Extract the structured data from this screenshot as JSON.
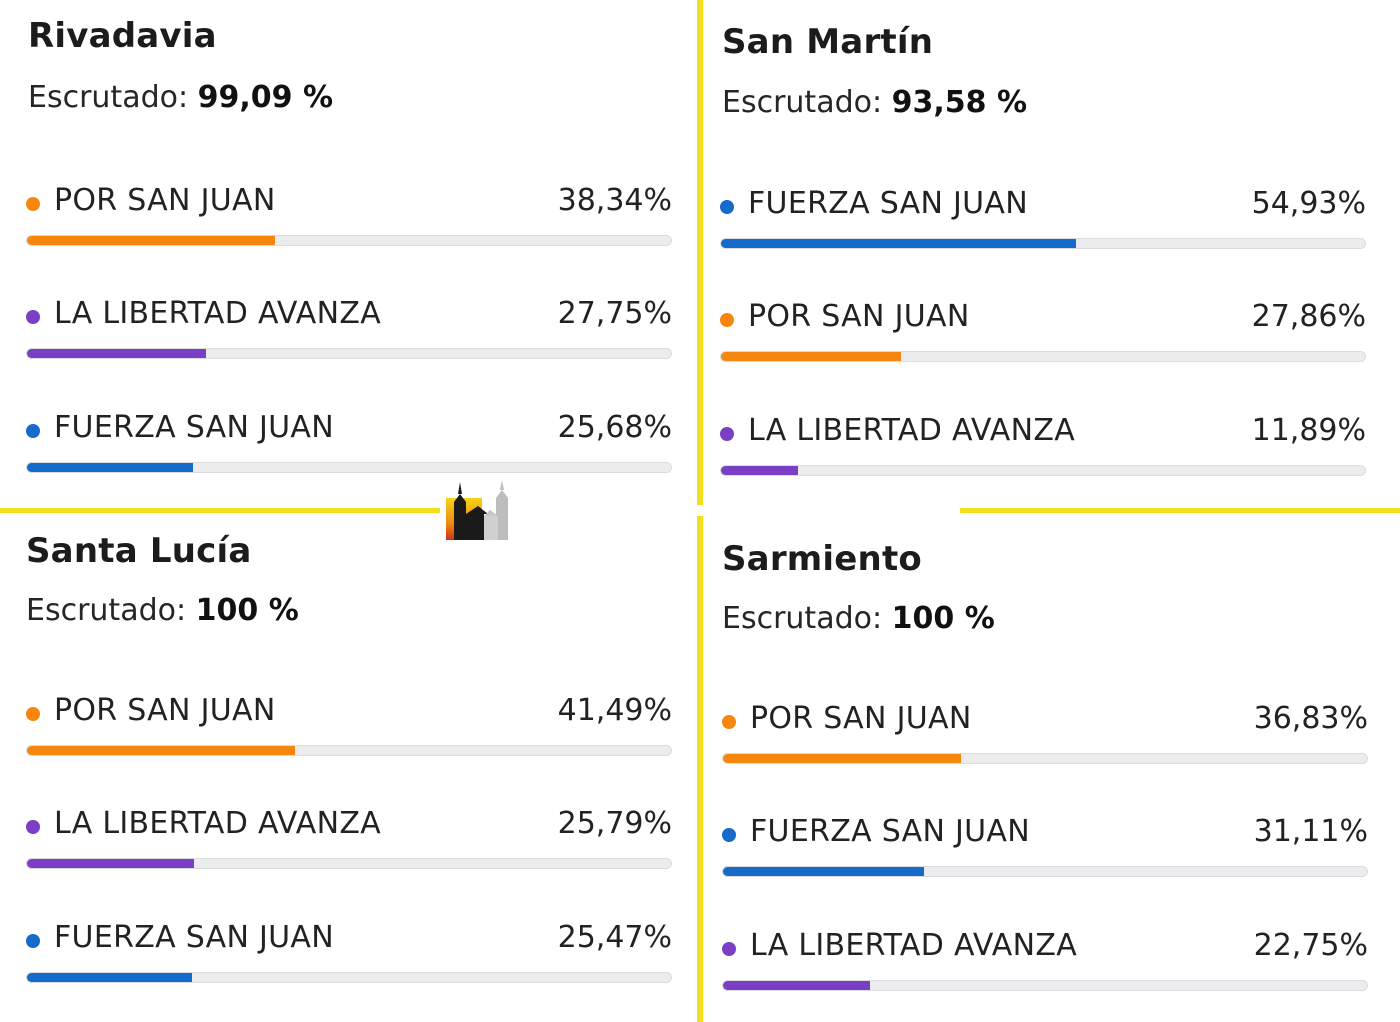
{
  "colors": {
    "POR SAN JUAN": "#f7860e",
    "LA LIBERTAD AVANZA": "#7a3fc4",
    "FUERZA SAN JUAN": "#146bc9"
  },
  "scrut_label": "Escrutado:",
  "logo_icon": "church-logo-icon",
  "chart_data": [
    {
      "type": "bar",
      "title": "Rivadavia",
      "scrutinized": "99,09 %",
      "xlim": [
        0,
        100
      ],
      "series": [
        {
          "name": "POR SAN JUAN",
          "value": 38.34,
          "label": "38,34%"
        },
        {
          "name": "LA LIBERTAD AVANZA",
          "value": 27.75,
          "label": "27,75%"
        },
        {
          "name": "FUERZA SAN JUAN",
          "value": 25.68,
          "label": "25,68%"
        }
      ]
    },
    {
      "type": "bar",
      "title": "San Martín",
      "scrutinized": "93,58 %",
      "xlim": [
        0,
        100
      ],
      "series": [
        {
          "name": "FUERZA SAN JUAN",
          "value": 54.93,
          "label": "54,93%"
        },
        {
          "name": "POR SAN JUAN",
          "value": 27.86,
          "label": "27,86%"
        },
        {
          "name": "LA LIBERTAD AVANZA",
          "value": 11.89,
          "label": "11,89%"
        }
      ]
    },
    {
      "type": "bar",
      "title": "Santa Lucía",
      "scrutinized": "100 %",
      "xlim": [
        0,
        100
      ],
      "series": [
        {
          "name": "POR SAN JUAN",
          "value": 41.49,
          "label": "41,49%"
        },
        {
          "name": "LA LIBERTAD AVANZA",
          "value": 25.79,
          "label": "25,79%"
        },
        {
          "name": "FUERZA SAN JUAN",
          "value": 25.47,
          "label": "25,47%"
        }
      ]
    },
    {
      "type": "bar",
      "title": "Sarmiento",
      "scrutinized": "100 %",
      "xlim": [
        0,
        100
      ],
      "series": [
        {
          "name": "POR SAN JUAN",
          "value": 36.83,
          "label": "36,83%"
        },
        {
          "name": "FUERZA SAN JUAN",
          "value": 31.11,
          "label": "31,11%"
        },
        {
          "name": "LA LIBERTAD AVANZA",
          "value": 22.75,
          "label": "22,75%"
        }
      ]
    }
  ]
}
